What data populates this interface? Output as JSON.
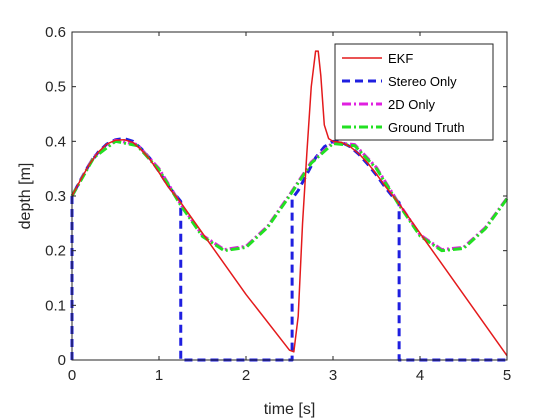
{
  "chart_data": {
    "type": "line",
    "xlabel": "time [s]",
    "ylabel": "depth [m]",
    "xlim": [
      0,
      5
    ],
    "ylim": [
      0,
      0.6
    ],
    "xticks": [
      "0",
      "1",
      "2",
      "3",
      "4",
      "5"
    ],
    "yticks": [
      "0",
      "0.1",
      "0.2",
      "0.3",
      "0.4",
      "0.5",
      "0.6"
    ],
    "grid": false,
    "legend_position": "top-right",
    "series": [
      {
        "name": "EKF",
        "color": "#e41a1c",
        "style": "solid",
        "x": [
          0,
          0.1,
          0.2,
          0.3,
          0.4,
          0.5,
          0.6,
          0.7,
          0.8,
          0.9,
          1.0,
          1.1,
          1.2,
          1.25,
          2.0,
          2.5,
          2.55,
          2.6,
          2.65,
          2.7,
          2.75,
          2.8,
          2.83,
          2.86,
          2.9,
          2.95,
          3.0,
          3.1,
          3.2,
          3.3,
          3.4,
          3.5,
          3.6,
          3.7,
          3.75,
          5.0
        ],
        "y": [
          0.3,
          0.33,
          0.358,
          0.38,
          0.395,
          0.402,
          0.403,
          0.398,
          0.384,
          0.366,
          0.343,
          0.318,
          0.298,
          0.288,
          0.12,
          0.018,
          0.015,
          0.08,
          0.25,
          0.38,
          0.5,
          0.565,
          0.565,
          0.52,
          0.43,
          0.405,
          0.4,
          0.398,
          0.39,
          0.377,
          0.36,
          0.34,
          0.318,
          0.298,
          0.288,
          0.008
        ]
      },
      {
        "name": "Stereo Only",
        "color": "#1f1fe0",
        "style": "dashed",
        "x": [
          0,
          0,
          0.1,
          0.2,
          0.3,
          0.4,
          0.5,
          0.6,
          0.7,
          0.8,
          0.9,
          1.0,
          1.1,
          1.2,
          1.25,
          1.25,
          2.53,
          2.53,
          2.6,
          2.7,
          2.8,
          2.9,
          3.0,
          3.1,
          3.2,
          3.3,
          3.4,
          3.5,
          3.6,
          3.7,
          3.76,
          3.76,
          5.0
        ],
        "y": [
          0.0,
          0.3,
          0.33,
          0.358,
          0.38,
          0.395,
          0.403,
          0.405,
          0.4,
          0.386,
          0.368,
          0.345,
          0.32,
          0.3,
          0.29,
          0.0,
          0.0,
          0.295,
          0.31,
          0.34,
          0.37,
          0.39,
          0.4,
          0.398,
          0.39,
          0.376,
          0.358,
          0.338,
          0.316,
          0.296,
          0.288,
          0.0,
          0.0
        ]
      },
      {
        "name": "2D Only",
        "color": "#e020e0",
        "style": "dashdot",
        "x": [
          0,
          0.25,
          0.5,
          0.75,
          1.0,
          1.25,
          1.5,
          1.75,
          2.0,
          2.25,
          2.5,
          2.75,
          3.0,
          3.25,
          3.5,
          3.75,
          4.0,
          4.25,
          4.5,
          4.75,
          5.0
        ],
        "y": [
          0.3,
          0.372,
          0.402,
          0.394,
          0.35,
          0.285,
          0.228,
          0.202,
          0.208,
          0.245,
          0.302,
          0.362,
          0.398,
          0.394,
          0.352,
          0.288,
          0.229,
          0.202,
          0.206,
          0.242,
          0.296
        ]
      },
      {
        "name": "Ground Truth",
        "color": "#22e022",
        "style": "dashdot",
        "x": [
          0,
          0.25,
          0.5,
          0.75,
          1.0,
          1.25,
          1.5,
          1.75,
          2.0,
          2.25,
          2.5,
          2.75,
          3.0,
          3.25,
          3.5,
          3.75,
          4.0,
          4.25,
          4.5,
          4.75,
          5.0
        ],
        "y": [
          0.3,
          0.37,
          0.4,
          0.392,
          0.348,
          0.283,
          0.226,
          0.2,
          0.206,
          0.243,
          0.3,
          0.36,
          0.396,
          0.392,
          0.35,
          0.286,
          0.227,
          0.2,
          0.204,
          0.24,
          0.295
        ]
      }
    ]
  }
}
